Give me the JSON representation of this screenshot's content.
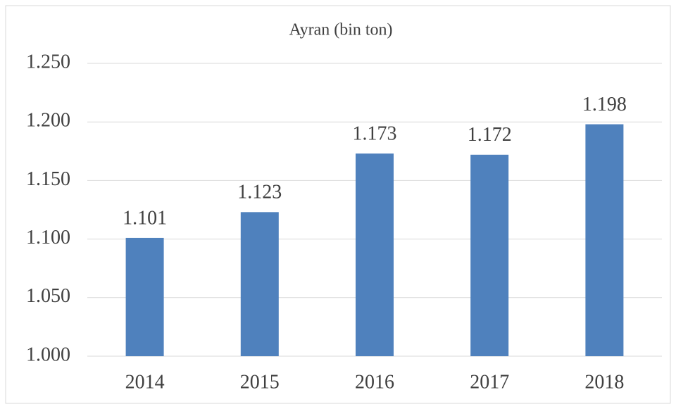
{
  "chart_data": {
    "type": "bar",
    "title": "Ayran (bin ton)",
    "categories": [
      "2014",
      "2015",
      "2016",
      "2017",
      "2018"
    ],
    "values": [
      1101,
      1123,
      1173,
      1172,
      1198
    ],
    "value_labels": [
      "1.101",
      "1.123",
      "1.173",
      "1.172",
      "1.198"
    ],
    "color": "#4f81bd",
    "ylim": [
      1000,
      1250
    ],
    "yticks": [
      {
        "value": 1000,
        "label": "1.000"
      },
      {
        "value": 1050,
        "label": "1.050"
      },
      {
        "value": 1100,
        "label": "1.100"
      },
      {
        "value": 1150,
        "label": "1.150"
      },
      {
        "value": 1200,
        "label": "1.200"
      },
      {
        "value": 1250,
        "label": "1.250"
      }
    ],
    "grid": true
  }
}
